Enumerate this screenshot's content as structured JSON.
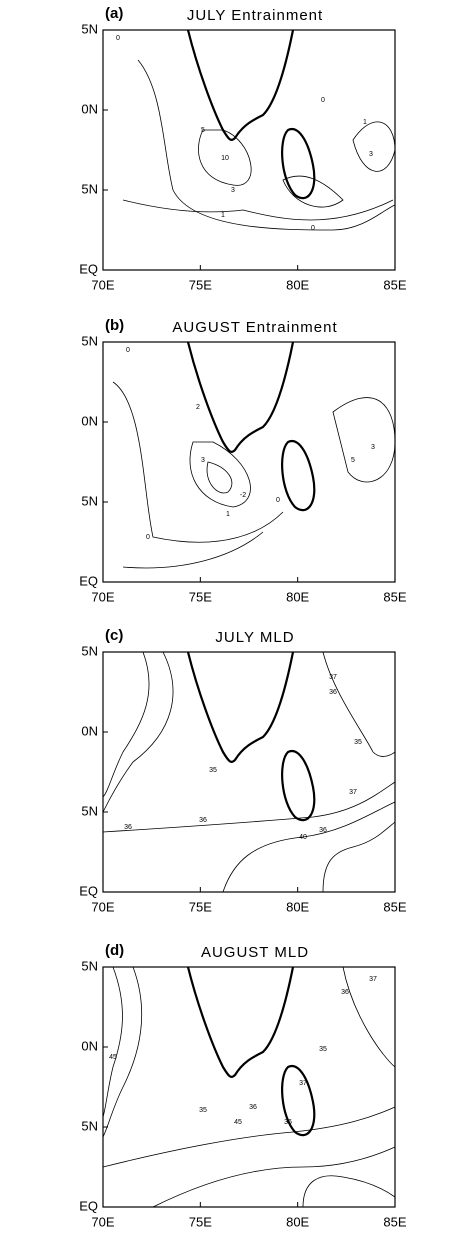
{
  "panels": [
    {
      "label": "(a)",
      "title": "JULY Entrainment",
      "y_ticks": [
        "5N",
        "0N",
        "5N",
        "EQ"
      ],
      "x_ticks": [
        "70E",
        "75E",
        "80E",
        "85E"
      ],
      "contour_labels": [
        "0",
        "5",
        "10",
        "3",
        "1",
        "0",
        "3",
        "1",
        "0"
      ]
    },
    {
      "label": "(b)",
      "title": "AUGUST Entrainment",
      "y_ticks": [
        "5N",
        "0N",
        "5N",
        "EQ"
      ],
      "x_ticks": [
        "70E",
        "75E",
        "80E",
        "85E"
      ],
      "contour_labels": [
        "0",
        "2",
        "3",
        "-2",
        "1",
        "0",
        "5",
        "3",
        "0"
      ]
    },
    {
      "label": "(c)",
      "title": "JULY MLD",
      "y_ticks": [
        "5N",
        "0N",
        "5N",
        "EQ"
      ],
      "x_ticks": [
        "70E",
        "75E",
        "80E",
        "85E"
      ],
      "contour_labels": [
        "37",
        "36",
        "35",
        "35",
        "36",
        "37",
        "36",
        "36",
        "40"
      ]
    },
    {
      "label": "(d)",
      "title": "AUGUST MLD",
      "y_ticks": [
        "5N",
        "0N",
        "5N",
        "EQ"
      ],
      "x_ticks": [
        "70E",
        "75E",
        "80E",
        "85E"
      ],
      "contour_labels": [
        "37",
        "36",
        "35",
        "35",
        "36",
        "37",
        "45",
        "45",
        "36"
      ]
    }
  ]
}
